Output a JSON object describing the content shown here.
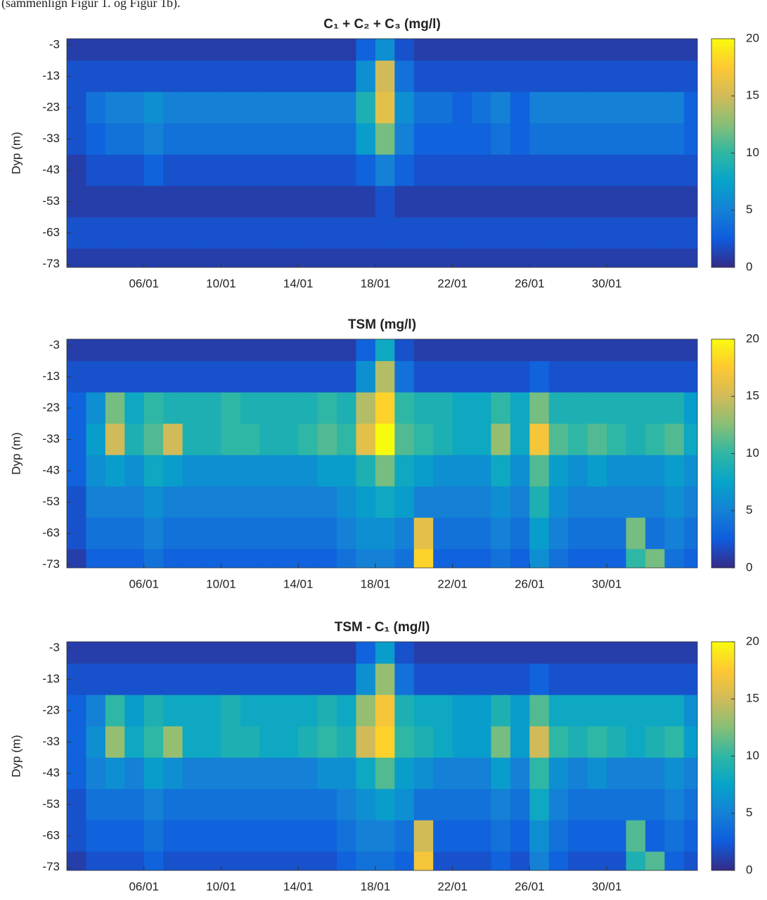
{
  "caption": "(sammenlign Figur 1. og Figur 1b).",
  "chart_data": [
    {
      "type": "heatmap",
      "title": "C₁ + C₂ + C₃ (mg/l)",
      "ylabel": "Dyp (m)",
      "colormap": "parula",
      "x": [
        2.5,
        3.5,
        4.5,
        5.5,
        6.5,
        7.5,
        8.5,
        9.5,
        10.5,
        11.5,
        12.5,
        13.5,
        14.5,
        15.5,
        16.5,
        17.5,
        18.5,
        19.5,
        20.5,
        21.5,
        22.5,
        23.5,
        24.5,
        25.5,
        26.5,
        27.5,
        28.5,
        29.5,
        30.5,
        31.5,
        32.5,
        33.5,
        34.5
      ],
      "y": [
        -3,
        -13,
        -23,
        -33,
        -43,
        -53,
        -63,
        -73
      ],
      "z": [
        [
          1,
          1,
          1,
          1,
          1,
          1,
          1,
          1,
          1,
          1,
          1,
          1,
          1,
          1,
          1,
          3,
          6,
          2,
          1,
          1,
          1,
          1,
          1,
          1,
          1,
          1,
          1,
          1,
          1,
          1,
          1,
          1,
          1
        ],
        [
          2,
          2,
          2,
          2,
          2,
          2,
          2,
          2,
          2,
          2,
          2,
          2,
          2,
          2,
          2,
          6,
          15,
          4,
          2,
          2,
          2,
          2,
          2,
          2,
          2,
          2,
          2,
          2,
          2,
          2,
          2,
          2,
          2
        ],
        [
          2,
          4,
          5,
          5,
          6,
          5,
          5,
          5,
          5,
          5,
          5,
          5,
          5,
          5,
          5,
          9,
          16,
          6,
          4,
          4,
          3,
          4,
          5,
          3,
          5,
          5,
          5,
          5,
          5,
          5,
          5,
          5,
          3
        ],
        [
          2,
          3,
          4,
          4,
          5,
          4,
          4,
          4,
          4,
          4,
          4,
          4,
          4,
          4,
          4,
          7,
          12,
          5,
          3,
          3,
          3,
          3,
          4,
          3,
          4,
          4,
          4,
          4,
          4,
          4,
          4,
          4,
          3
        ],
        [
          1,
          2,
          2,
          2,
          3,
          2,
          2,
          2,
          2,
          2,
          2,
          2,
          2,
          2,
          2,
          3,
          5,
          3,
          2,
          2,
          2,
          2,
          2,
          2,
          2,
          2,
          2,
          2,
          2,
          2,
          2,
          2,
          2
        ],
        [
          1,
          1,
          1,
          1,
          1,
          1,
          1,
          1,
          1,
          1,
          1,
          1,
          1,
          1,
          1,
          1,
          2,
          1,
          1,
          1,
          1,
          1,
          1,
          1,
          1,
          1,
          1,
          1,
          1,
          1,
          1,
          1,
          1
        ],
        [
          2,
          2,
          2,
          2,
          2,
          2,
          2,
          2,
          2,
          2,
          2,
          2,
          2,
          2,
          2,
          2,
          2,
          2,
          2,
          2,
          2,
          2,
          2,
          2,
          2,
          2,
          2,
          2,
          2,
          2,
          2,
          2,
          2
        ],
        [
          1,
          1,
          1,
          1,
          1,
          1,
          1,
          1,
          1,
          1,
          1,
          1,
          1,
          1,
          1,
          1,
          1,
          1,
          1,
          1,
          1,
          1,
          1,
          1,
          1,
          1,
          1,
          1,
          1,
          1,
          1,
          1,
          1
        ]
      ],
      "xlim": [
        2,
        34.7
      ],
      "ylim": [
        -74,
        -1
      ],
      "xticks": [
        {
          "value": 6,
          "label": "06/01"
        },
        {
          "value": 10,
          "label": "10/01"
        },
        {
          "value": 14,
          "label": "14/01"
        },
        {
          "value": 18,
          "label": "18/01"
        },
        {
          "value": 22,
          "label": "22/01"
        },
        {
          "value": 26,
          "label": "26/01"
        },
        {
          "value": 30,
          "label": "30/01"
        }
      ],
      "yticks": [
        -3,
        -13,
        -23,
        -33,
        -43,
        -53,
        -63,
        -73
      ],
      "clim": [
        0,
        20
      ],
      "cticks": [
        0,
        5,
        10,
        15,
        20
      ]
    },
    {
      "type": "heatmap",
      "title": "TSM (mg/l)",
      "ylabel": "Dyp (m)",
      "colormap": "parula",
      "x": [
        2.5,
        3.5,
        4.5,
        5.5,
        6.5,
        7.5,
        8.5,
        9.5,
        10.5,
        11.5,
        12.5,
        13.5,
        14.5,
        15.5,
        16.5,
        17.5,
        18.5,
        19.5,
        20.5,
        21.5,
        22.5,
        23.5,
        24.5,
        25.5,
        26.5,
        27.5,
        28.5,
        29.5,
        30.5,
        31.5,
        32.5,
        33.5,
        34.5
      ],
      "y": [
        -3,
        -13,
        -23,
        -33,
        -43,
        -53,
        -63,
        -73
      ],
      "z": [
        [
          1,
          1,
          1,
          1,
          1,
          1,
          1,
          1,
          1,
          1,
          1,
          1,
          1,
          1,
          1,
          3,
          8,
          2,
          1,
          1,
          1,
          1,
          1,
          1,
          1,
          1,
          1,
          1,
          1,
          1,
          1,
          1,
          1
        ],
        [
          2,
          2,
          2,
          2,
          2,
          2,
          2,
          2,
          2,
          2,
          2,
          2,
          2,
          2,
          2,
          6,
          14,
          4,
          2,
          2,
          2,
          2,
          2,
          2,
          3,
          2,
          2,
          2,
          2,
          2,
          2,
          2,
          2
        ],
        [
          3,
          6,
          12,
          8,
          10,
          9,
          9,
          9,
          10,
          9,
          9,
          9,
          9,
          10,
          9,
          14,
          18,
          10,
          9,
          9,
          8,
          8,
          10,
          8,
          12,
          9,
          9,
          9,
          9,
          9,
          9,
          9,
          7
        ],
        [
          3,
          7,
          15,
          9,
          11,
          15,
          9,
          9,
          10,
          10,
          9,
          9,
          10,
          11,
          10,
          16,
          20,
          11,
          10,
          9,
          8,
          8,
          13,
          8,
          17,
          11,
          10,
          11,
          10,
          9,
          10,
          11,
          8
        ],
        [
          3,
          6,
          7,
          6,
          8,
          7,
          6,
          6,
          6,
          6,
          6,
          6,
          6,
          7,
          7,
          9,
          12,
          8,
          7,
          6,
          6,
          6,
          8,
          6,
          11,
          7,
          6,
          7,
          6,
          6,
          6,
          7,
          6
        ],
        [
          2,
          5,
          5,
          5,
          6,
          5,
          5,
          5,
          5,
          5,
          5,
          5,
          5,
          5,
          6,
          7,
          8,
          7,
          5,
          5,
          5,
          5,
          6,
          5,
          9,
          6,
          5,
          5,
          5,
          5,
          5,
          6,
          5
        ],
        [
          2,
          4,
          4,
          4,
          5,
          4,
          4,
          4,
          4,
          4,
          4,
          4,
          4,
          4,
          5,
          6,
          6,
          5,
          16,
          4,
          4,
          4,
          5,
          4,
          7,
          5,
          4,
          4,
          4,
          12,
          4,
          5,
          4
        ],
        [
          1,
          3,
          3,
          3,
          4,
          3,
          3,
          3,
          3,
          3,
          3,
          3,
          3,
          3,
          4,
          5,
          5,
          4,
          18,
          3,
          3,
          3,
          4,
          3,
          6,
          4,
          3,
          3,
          3,
          10,
          12,
          4,
          3
        ]
      ],
      "xlim": [
        2,
        34.7
      ],
      "ylim": [
        -74,
        -1
      ],
      "xticks": [
        {
          "value": 6,
          "label": "06/01"
        },
        {
          "value": 10,
          "label": "10/01"
        },
        {
          "value": 14,
          "label": "14/01"
        },
        {
          "value": 18,
          "label": "18/01"
        },
        {
          "value": 22,
          "label": "22/01"
        },
        {
          "value": 26,
          "label": "26/01"
        },
        {
          "value": 30,
          "label": "30/01"
        }
      ],
      "yticks": [
        -3,
        -13,
        -23,
        -33,
        -43,
        -53,
        -63,
        -73
      ],
      "clim": [
        0,
        20
      ],
      "cticks": [
        0,
        5,
        10,
        15,
        20
      ]
    },
    {
      "type": "heatmap",
      "title": "TSM - C₁ (mg/l)",
      "ylabel": "Dyp (m)",
      "colormap": "parula",
      "x": [
        2.5,
        3.5,
        4.5,
        5.5,
        6.5,
        7.5,
        8.5,
        9.5,
        10.5,
        11.5,
        12.5,
        13.5,
        14.5,
        15.5,
        16.5,
        17.5,
        18.5,
        19.5,
        20.5,
        21.5,
        22.5,
        23.5,
        24.5,
        25.5,
        26.5,
        27.5,
        28.5,
        29.5,
        30.5,
        31.5,
        32.5,
        33.5,
        34.5
      ],
      "y": [
        -3,
        -13,
        -23,
        -33,
        -43,
        -53,
        -63,
        -73
      ],
      "z": [
        [
          1,
          1,
          1,
          1,
          1,
          1,
          1,
          1,
          1,
          1,
          1,
          1,
          1,
          1,
          1,
          3,
          7,
          2,
          1,
          1,
          1,
          1,
          1,
          1,
          1,
          1,
          1,
          1,
          1,
          1,
          1,
          1,
          1
        ],
        [
          2,
          2,
          2,
          2,
          2,
          2,
          2,
          2,
          2,
          2,
          2,
          2,
          2,
          2,
          2,
          6,
          13,
          4,
          2,
          2,
          2,
          2,
          2,
          2,
          3,
          2,
          2,
          2,
          2,
          2,
          2,
          2,
          2
        ],
        [
          3,
          5,
          10,
          7,
          9,
          8,
          8,
          8,
          9,
          8,
          8,
          8,
          8,
          9,
          8,
          13,
          17,
          9,
          8,
          8,
          7,
          7,
          9,
          7,
          11,
          8,
          8,
          8,
          8,
          8,
          8,
          8,
          6
        ],
        [
          3,
          6,
          13,
          8,
          10,
          13,
          8,
          8,
          9,
          9,
          8,
          8,
          9,
          10,
          9,
          15,
          18,
          10,
          9,
          8,
          7,
          7,
          12,
          7,
          15,
          10,
          9,
          10,
          9,
          8,
          9,
          10,
          7
        ],
        [
          3,
          5,
          6,
          5,
          7,
          6,
          5,
          5,
          5,
          5,
          5,
          5,
          5,
          6,
          6,
          8,
          11,
          7,
          6,
          5,
          5,
          5,
          7,
          5,
          10,
          6,
          5,
          6,
          5,
          5,
          5,
          6,
          5
        ],
        [
          2,
          4,
          4,
          4,
          5,
          4,
          4,
          4,
          4,
          4,
          4,
          4,
          4,
          4,
          5,
          6,
          7,
          6,
          4,
          4,
          4,
          4,
          5,
          4,
          8,
          5,
          4,
          4,
          4,
          4,
          4,
          5,
          4
        ],
        [
          2,
          3,
          3,
          3,
          4,
          3,
          3,
          3,
          3,
          3,
          3,
          3,
          3,
          3,
          4,
          5,
          5,
          4,
          15,
          3,
          3,
          3,
          4,
          3,
          6,
          4,
          3,
          3,
          3,
          11,
          3,
          4,
          3
        ],
        [
          1,
          2,
          2,
          2,
          3,
          2,
          2,
          2,
          2,
          2,
          2,
          2,
          2,
          2,
          3,
          4,
          4,
          3,
          17,
          2,
          2,
          2,
          3,
          2,
          5,
          3,
          2,
          2,
          2,
          9,
          11,
          3,
          2
        ]
      ],
      "xlim": [
        2,
        34.7
      ],
      "ylim": [
        -74,
        -1
      ],
      "xticks": [
        {
          "value": 6,
          "label": "06/01"
        },
        {
          "value": 10,
          "label": "10/01"
        },
        {
          "value": 14,
          "label": "14/01"
        },
        {
          "value": 18,
          "label": "18/01"
        },
        {
          "value": 22,
          "label": "22/01"
        },
        {
          "value": 26,
          "label": "26/01"
        },
        {
          "value": 30,
          "label": "30/01"
        }
      ],
      "yticks": [
        -3,
        -13,
        -23,
        -33,
        -43,
        -53,
        -63,
        -73
      ],
      "clim": [
        0,
        20
      ],
      "cticks": [
        0,
        5,
        10,
        15,
        20
      ]
    }
  ]
}
